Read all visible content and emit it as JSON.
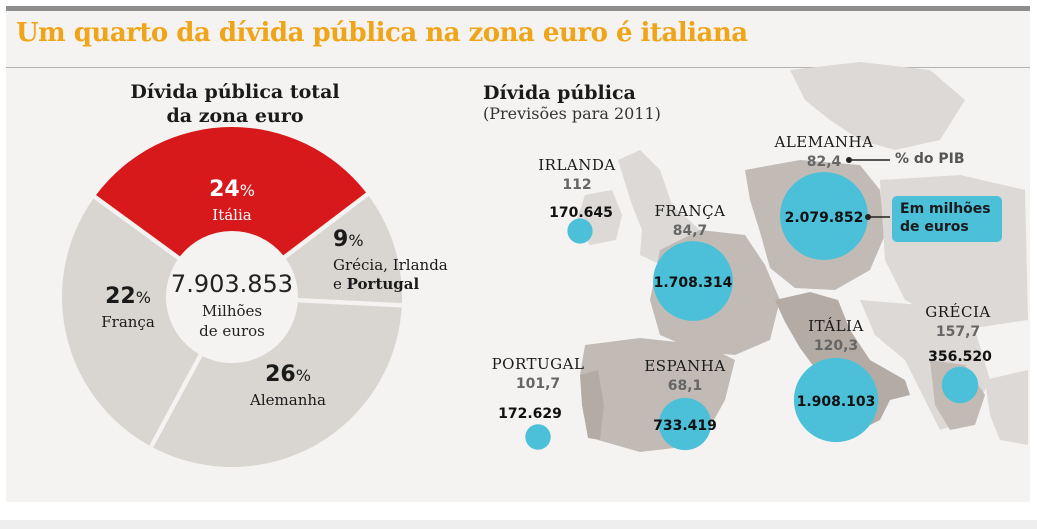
{
  "headline": "Um quarto da dívida pública na zona euro é italiana",
  "colors": {
    "accent": "#f0a418",
    "italy": "#d7191c",
    "segment": "#d9d6d2",
    "bubble": "#4cc0d8",
    "map_land": "#dcd9d6",
    "map_highlight": "#b9b2ac"
  },
  "chart_data": [
    {
      "type": "pie",
      "title": "Dívida pública total da zona euro",
      "title_lines": [
        "Dívida pública total",
        "da zona euro"
      ],
      "center": {
        "value": "7.903.853",
        "unit_lines": [
          "Milhões",
          "de euros"
        ]
      },
      "slices": [
        {
          "label": "Itália",
          "percent": 24,
          "pct_text": "24",
          "highlight": true
        },
        {
          "label_lines": [
            "Grécia, Irlanda",
            "e"
          ],
          "label_bold": "Portugal",
          "percent": 9,
          "pct_text": "9",
          "highlight": false
        },
        {
          "label": "Alemanha",
          "percent": 26,
          "pct_text": "26",
          "highlight": false
        },
        {
          "label": "França",
          "percent": 22,
          "pct_text": "22",
          "highlight": false
        }
      ],
      "pct_sign": "%"
    },
    {
      "type": "scatter",
      "title": "Dívida pública",
      "subtitle": "(Previsões para 2011)",
      "size_unit": "Em milhões de euros",
      "ratio_unit": "% do PIB",
      "countries": [
        {
          "name": "IRLANDA",
          "pct_pib": "112",
          "debt": "170.645",
          "debt_value": 170645
        },
        {
          "name": "FRANÇA",
          "pct_pib": "84,7",
          "debt": "1.708.314",
          "debt_value": 1708314
        },
        {
          "name": "ALEMANHA",
          "pct_pib": "82,4",
          "debt": "2.079.852",
          "debt_value": 2079852
        },
        {
          "name": "ITÁLIA",
          "pct_pib": "120,3",
          "debt": "1.908.103",
          "debt_value": 1908103
        },
        {
          "name": "GRÉCIA",
          "pct_pib": "157,7",
          "debt": "356.520",
          "debt_value": 356520
        },
        {
          "name": "PORTUGAL",
          "pct_pib": "101,7",
          "debt": "172.629",
          "debt_value": 172629
        },
        {
          "name": "ESPANHA",
          "pct_pib": "68,1",
          "debt": "733.419",
          "debt_value": 733419
        }
      ],
      "legend_pib": "% do PIB",
      "legend_size_lines": [
        "Em milhões",
        "de euros"
      ]
    }
  ]
}
